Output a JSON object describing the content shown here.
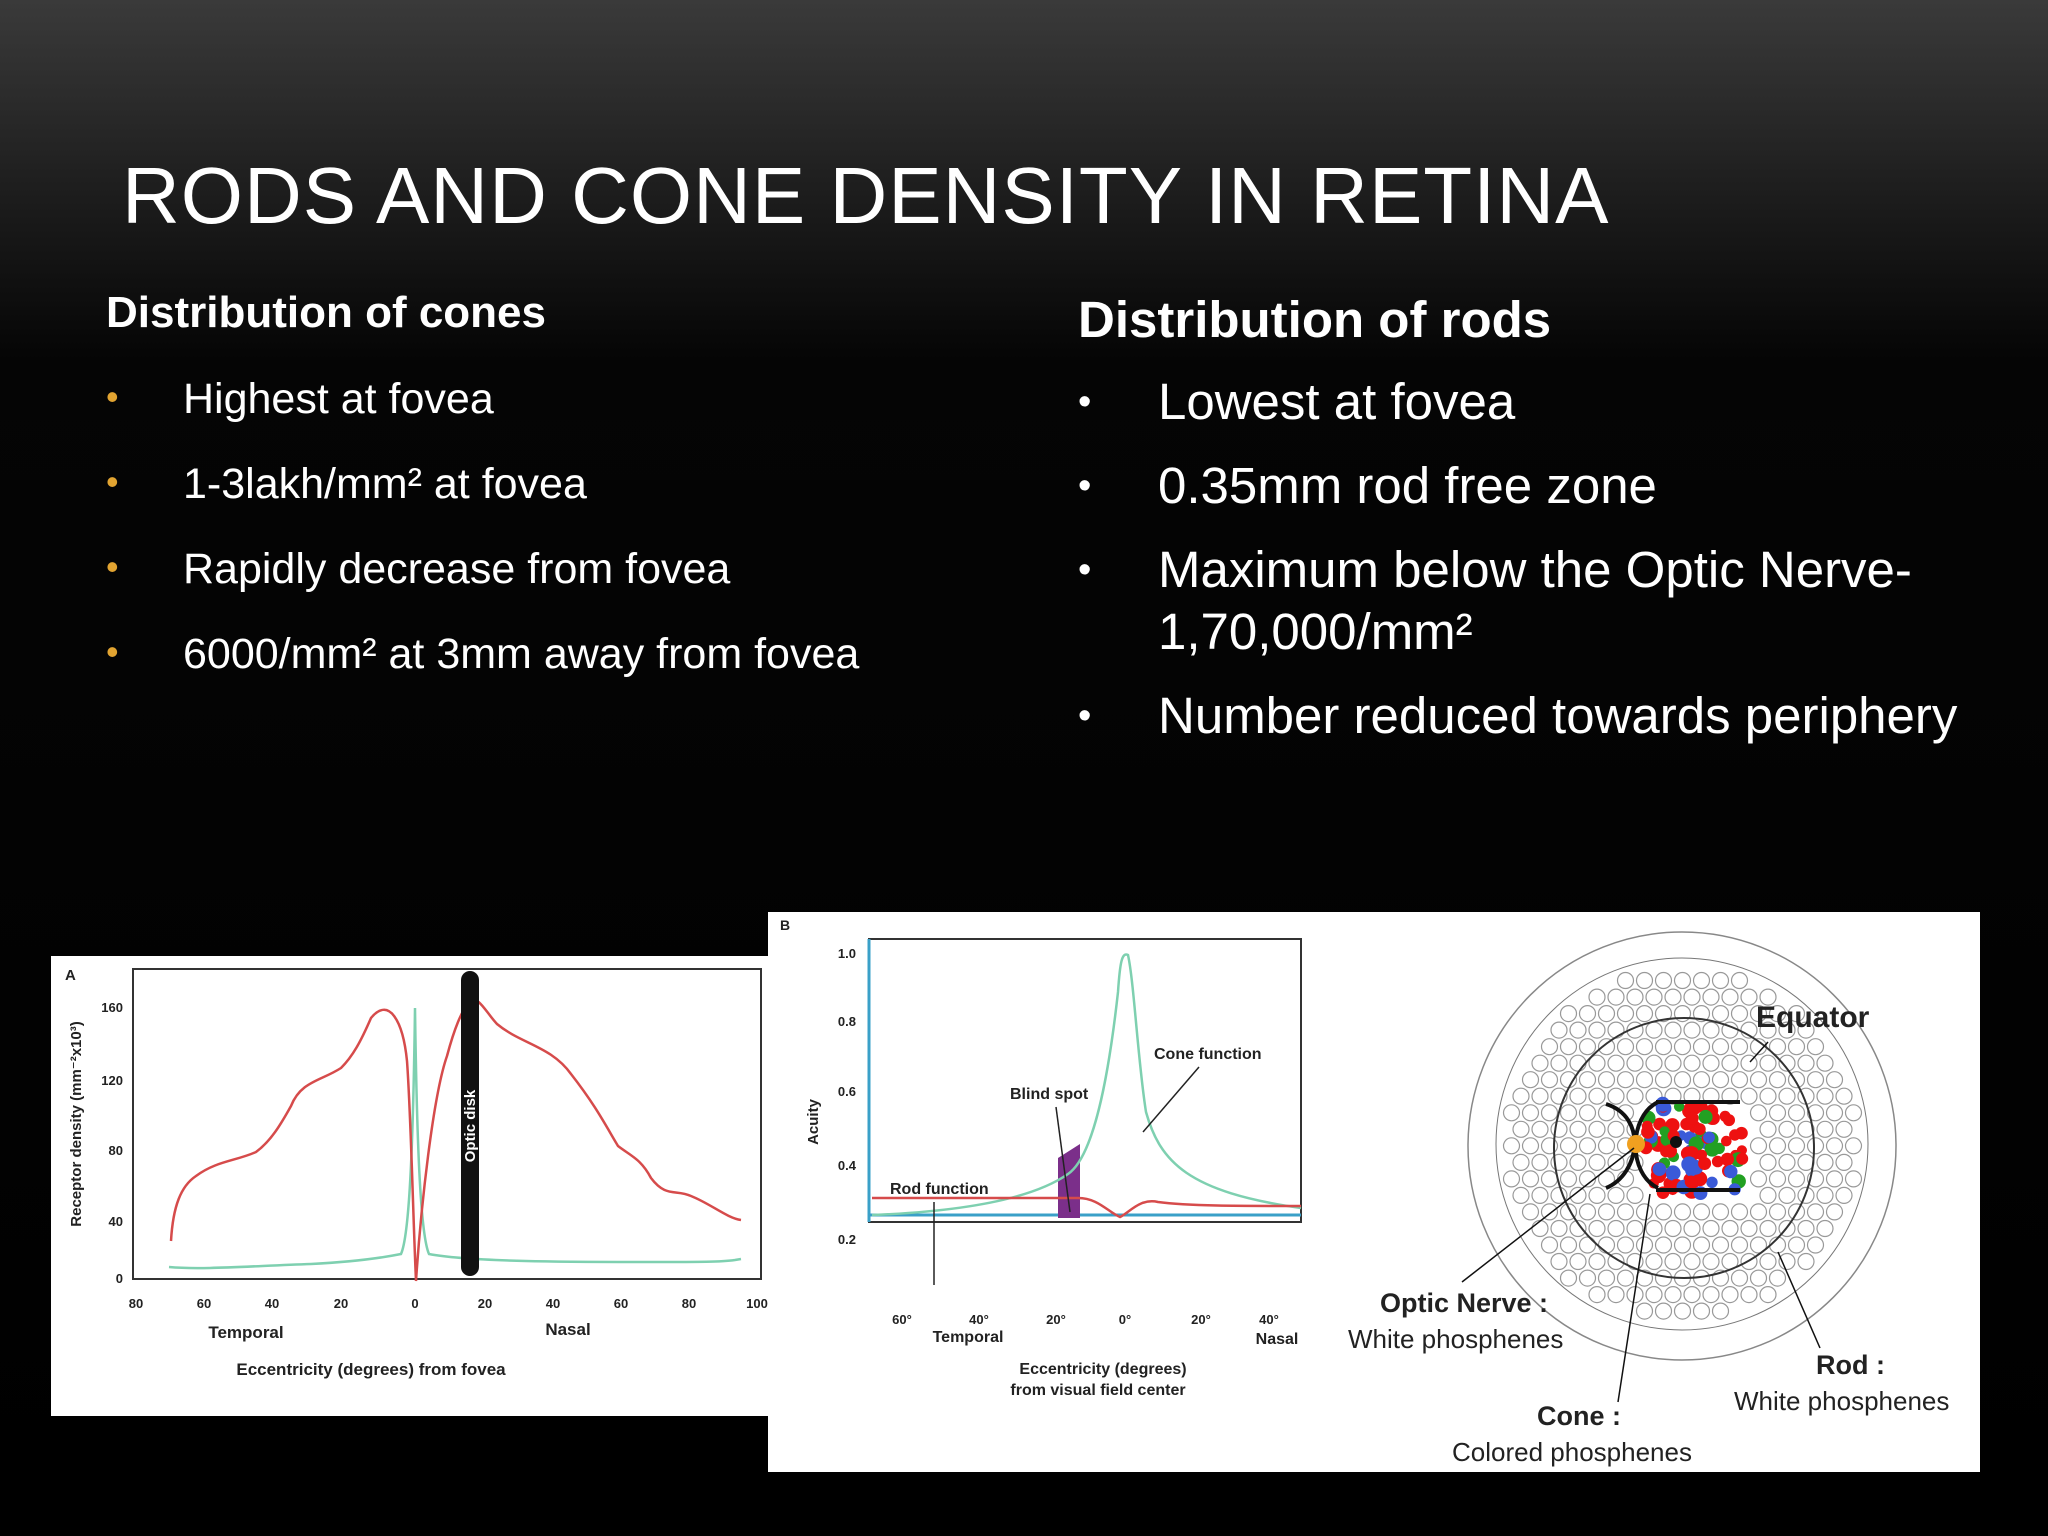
{
  "slide": {
    "title": "RODS AND CONE DENSITY IN RETINA",
    "bullet_color_cones": "#e2a431"
  },
  "cones": {
    "heading": "Distribution of cones",
    "bullets": [
      "Highest at fovea",
      "1-3lakh/mm² at fovea",
      "Rapidly decrease from fovea",
      "6000/mm² at 3mm away from fovea"
    ]
  },
  "rods": {
    "heading": "Distribution of rods",
    "bullets": [
      "Lowest at fovea",
      "0.35mm rod free zone",
      "Maximum below the Optic Nerve-1,70,000/mm²",
      "Number reduced towards periphery"
    ]
  },
  "figure_a": {
    "panel_label": "A",
    "ylabel": "Receptor density (mm⁻²x10³)",
    "y_ticks": [
      "0",
      "40",
      "80",
      "120",
      "160"
    ],
    "x_ticks": [
      "80",
      "60",
      "40",
      "20",
      "0",
      "20",
      "40",
      "60",
      "80",
      "100"
    ],
    "temporal_label": "Temporal",
    "nasal_label": "Nasal",
    "xlabel": "Eccentricity (degrees) from fovea",
    "optic_disk_label": "Optic disk",
    "rod_color": "#d64b4b",
    "cone_color": "#7ed0b0"
  },
  "figure_b": {
    "panel_label": "B",
    "ylabel": "Acuity",
    "y_ticks": [
      "1.0",
      "0.8",
      "0.6",
      "0.4",
      "0.2"
    ],
    "x_ticks": [
      "60°",
      "40°",
      "20°",
      "0°",
      "20°",
      "40°"
    ],
    "temporal_label": "Temporal",
    "nasal_label": "Nasal",
    "xlabel_line1": "Eccentricity (degrees)",
    "xlabel_line2": "from visual field center",
    "cone_function_label": "Cone function",
    "blind_spot_label": "Blind spot",
    "rod_function_label": "Rod function",
    "blind_spot_color": "#7b2f8a"
  },
  "figure_c": {
    "equator_label": "Equator",
    "optic_nerve_label": "Optic Nerve :",
    "optic_nerve_sub": "White phosphenes",
    "rod_label": "Rod :",
    "rod_sub": "White phosphenes",
    "cone_label": "Cone :",
    "cone_sub": "Colored phosphenes"
  }
}
